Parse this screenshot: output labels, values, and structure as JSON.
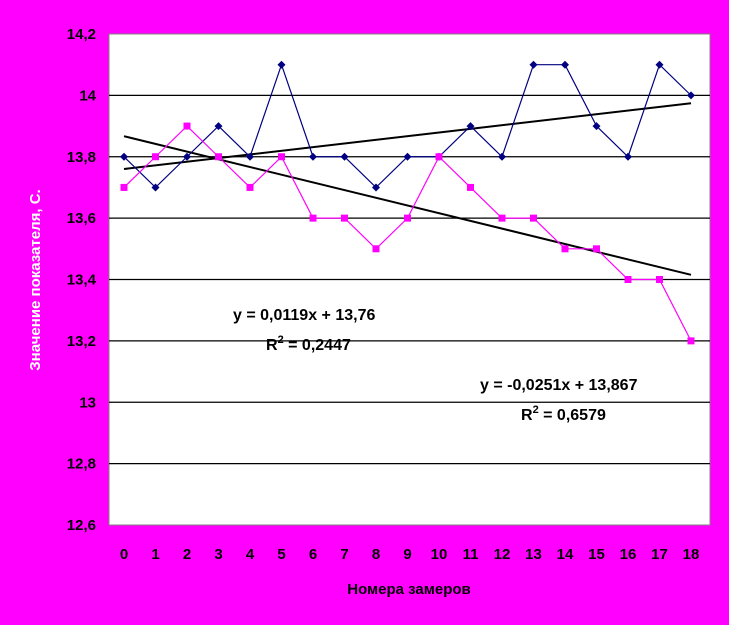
{
  "chart_data": {
    "type": "line",
    "title": "",
    "xlabel": "Номера замеров",
    "ylabel": "Значение показателя, С.",
    "x": [
      0,
      1,
      2,
      3,
      4,
      5,
      6,
      7,
      8,
      9,
      10,
      11,
      12,
      13,
      14,
      15,
      16,
      17,
      18
    ],
    "ylim": [
      12.6,
      14.2
    ],
    "yticks": [
      12.6,
      12.8,
      13.0,
      13.2,
      13.4,
      13.6,
      13.8,
      14.0,
      14.2
    ],
    "ytick_labels": [
      "12,6",
      "12,8",
      "13",
      "13,2",
      "13,4",
      "13,6",
      "13,8",
      "14",
      "14,2"
    ],
    "grid": true,
    "series": [
      {
        "color": "#000080",
        "marker": "diamond",
        "values": [
          13.8,
          13.7,
          13.8,
          13.9,
          13.8,
          14.1,
          13.8,
          13.8,
          13.7,
          13.8,
          13.8,
          13.9,
          13.8,
          14.1,
          14.1,
          13.9,
          13.8,
          14.1,
          14.0
        ]
      },
      {
        "color": "#FF00FF",
        "marker": "square",
        "values": [
          13.7,
          13.8,
          13.9,
          13.8,
          13.7,
          13.8,
          13.6,
          13.6,
          13.5,
          13.6,
          13.8,
          13.7,
          13.6,
          13.6,
          13.5,
          13.5,
          13.4,
          13.4,
          13.2
        ]
      }
    ],
    "trendlines": [
      {
        "slope": 0.0119,
        "intercept": 13.76,
        "equation": "y = 0,0119x + 13,76",
        "r2_prefix": "R",
        "r2_exp": "2",
        "r2_value": " = 0,2447"
      },
      {
        "slope": -0.0251,
        "intercept": 13.867,
        "equation": "y = -0,0251x + 13,867",
        "r2_prefix": "R",
        "r2_exp": "2",
        "r2_value": " = 0,6579"
      }
    ]
  }
}
